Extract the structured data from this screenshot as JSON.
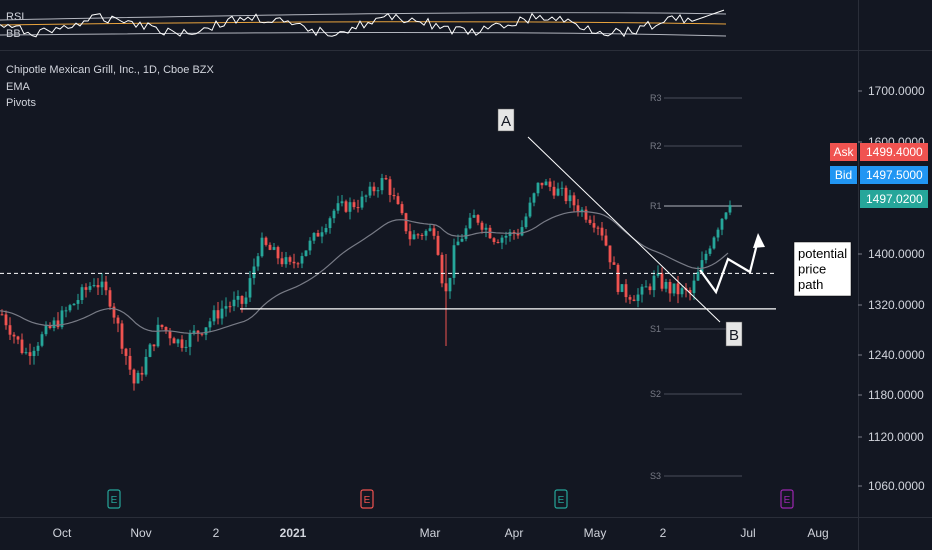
{
  "header": {
    "symbol_title": "Chipotle Mexican Grill, Inc., 1D, Cboe BZX",
    "indicators": [
      "EMA",
      "Pivots"
    ],
    "sub_pane_labels": [
      "RSI",
      "BB"
    ]
  },
  "chart_data": {
    "type": "candlestick",
    "title": "Chipotle Mexican Grill, Inc., 1D, Cboe BZX",
    "y_ticks": [
      1700,
      1600,
      1400,
      1320,
      1240,
      1180,
      1120,
      1060
    ],
    "y_tick_labels": [
      "1700.0000",
      "1600.0000",
      "1400.0000",
      "1320.0000",
      "1240.0000",
      "1180.0000",
      "1120.0000",
      "1060.0000"
    ],
    "x_ticks": [
      "Oct",
      "Nov",
      "2",
      "2021",
      "Mar",
      "Apr",
      "May",
      "2",
      "Jul",
      "Aug"
    ],
    "price_tags": [
      {
        "label": "Ask",
        "value": "1499.4000",
        "color": "#f05350"
      },
      {
        "label": "Bid",
        "value": "1497.5000",
        "color": "#2196f3"
      },
      {
        "label": "",
        "value": "1497.0200",
        "color": "#26a69a"
      }
    ],
    "pivots": [
      {
        "name": "R3",
        "value": 1680
      },
      {
        "name": "R2",
        "value": 1590
      },
      {
        "name": "R1",
        "value": 1495
      },
      {
        "name": "S1",
        "value": 1278
      },
      {
        "name": "S2",
        "value": 1185
      },
      {
        "name": "S3",
        "value": 1060
      }
    ],
    "support_level": 1315,
    "dashed_level": 1370,
    "earnings_markers": [
      "E",
      "E",
      "E",
      "E"
    ],
    "annotations": {
      "point_a": "A",
      "point_b": "B",
      "note": [
        "potential",
        "price",
        "path"
      ]
    },
    "colors": {
      "up": "#26a69a",
      "down": "#ef5350",
      "ema": "#787b86",
      "background": "#131722"
    }
  }
}
